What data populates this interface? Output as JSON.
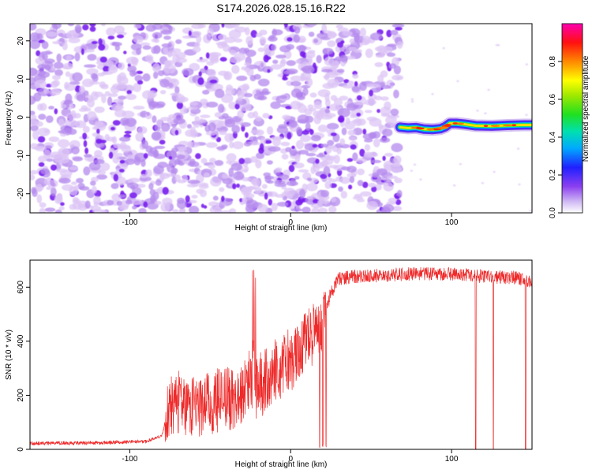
{
  "title": "S174.2026.028.15.16.R22",
  "colors": {
    "snr_line": "#ee2a2a",
    "speckle_light": "#dcc4f6",
    "speckle_mid": "#b48aee",
    "speckle_dark": "#7a1df0",
    "frame": "#000000"
  },
  "chart_data": [
    {
      "type": "heatmap",
      "name": "spectrogram",
      "xlabel": "Height of straight line (km)",
      "ylabel": "Frequency (Hz)",
      "xlim": [
        -162,
        150
      ],
      "ylim": [
        -25,
        24.5
      ],
      "x_ticks": [
        -100,
        0,
        100
      ],
      "y_ticks": [
        -20,
        -10,
        0,
        10,
        20
      ],
      "x_tick_labels": [
        "-100",
        "0",
        "100"
      ],
      "y_tick_labels": [
        "-20",
        "-10",
        "0",
        "10",
        "20"
      ],
      "noise_region_x": [
        -162,
        68
      ],
      "signal_track": {
        "x": [
          68,
          73,
          78,
          83,
          88,
          93,
          96,
          99,
          103,
          108,
          115,
          125,
          135,
          145,
          150
        ],
        "y": [
          -2.6,
          -2.8,
          -2.7,
          -3.1,
          -3.2,
          -3.0,
          -2.5,
          -1.6,
          -1.6,
          -1.8,
          -2.2,
          -2.3,
          -2.1,
          -2.0,
          -2.0
        ]
      },
      "colorbar": {
        "label": "Normalized spectral amplitude",
        "range": [
          0,
          1
        ],
        "ticks": [
          0.0,
          0.2,
          0.4,
          0.6,
          0.8
        ],
        "tick_labels": [
          "0.0",
          "0.2",
          "0.4",
          "0.6",
          "0.8"
        ]
      }
    },
    {
      "type": "line",
      "name": "snr",
      "xlabel": "Height of straight line (km)",
      "ylabel": "SNR (10 * v/v)",
      "xlim": [
        -162,
        150
      ],
      "ylim": [
        0,
        700
      ],
      "x_ticks": [
        -100,
        0,
        100
      ],
      "y_ticks": [
        0,
        200,
        400,
        600
      ],
      "x_tick_labels": [
        "-100",
        "0",
        "100"
      ],
      "y_tick_labels": [
        "0",
        "200",
        "400",
        "600"
      ],
      "series": [
        {
          "name": "SNR",
          "x": [
            -162,
            -120,
            -90,
            -80,
            -76,
            -70,
            -60,
            -50,
            -40,
            -30,
            -25,
            -22,
            -18,
            -10,
            0,
            10,
            20,
            25,
            30,
            40,
            60,
            80,
            100,
            120,
            140,
            150
          ],
          "y": [
            22,
            24,
            30,
            50,
            150,
            180,
            160,
            175,
            185,
            210,
            280,
            230,
            240,
            290,
            330,
            400,
            470,
            580,
            630,
            640,
            645,
            650,
            650,
            640,
            635,
            620
          ]
        }
      ],
      "dropouts_x": [
        18,
        20,
        22,
        115,
        126,
        146
      ]
    }
  ]
}
